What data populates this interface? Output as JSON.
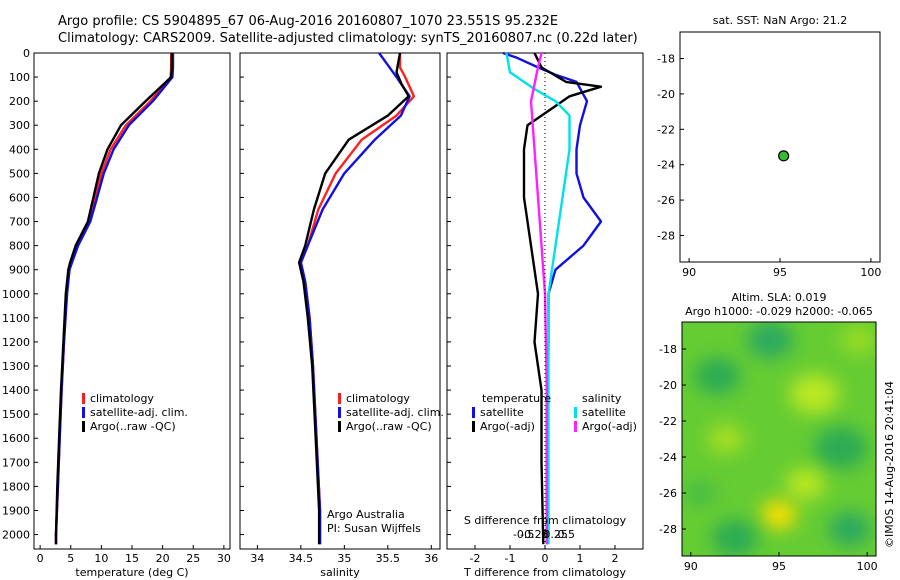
{
  "header": {
    "line1": "Argo profile: CS 5904895_67 06-Aug-2016 20160807_1070 23.551S 95.232E",
    "line2": "Climatology: CARS2009. Satellite-adjusted climatology: synTS_20160807.nc (0.22d later)"
  },
  "colors": {
    "climatology": "#ff2020",
    "satellite": "#1010e0",
    "argo": "#000000",
    "sal_satellite": "#00e0e8",
    "sal_argo": "#ff20ff",
    "marker": "#33bb33"
  },
  "depth_axis": {
    "ticks": [
      0,
      100,
      200,
      300,
      400,
      500,
      600,
      700,
      800,
      900,
      1000,
      1100,
      1200,
      1300,
      1400,
      1500,
      1600,
      1700,
      1800,
      1900,
      2000
    ],
    "ylim": [
      0,
      2060
    ]
  },
  "side_text": "©IMOS 14-Aug-2016 20:41:04",
  "chart_data": [
    {
      "type": "line",
      "id": "temperature",
      "xlabel": "temperature (deg C)",
      "xlim": [
        -1,
        31
      ],
      "xticks": [
        0,
        5,
        10,
        15,
        20,
        25,
        30
      ],
      "xticklabels": [
        "0",
        "5",
        "10",
        "15",
        "20",
        "25",
        "30"
      ],
      "legend": [
        "climatology",
        "satellite-adj. clim.",
        "Argo(..raw -QC)"
      ],
      "series": [
        {
          "name": "climatology",
          "color": "#ff2020",
          "points": [
            [
              21.4,
              0
            ],
            [
              21.4,
              60
            ],
            [
              21.3,
              100
            ],
            [
              18,
              200
            ],
            [
              14,
              300
            ],
            [
              11.5,
              400
            ],
            [
              10,
              500
            ],
            [
              9,
              600
            ],
            [
              8,
              700
            ],
            [
              6,
              800
            ],
            [
              5.1,
              870
            ],
            [
              4.7,
              900
            ],
            [
              4.3,
              1000
            ],
            [
              3.9,
              1200
            ],
            [
              3.5,
              1400
            ],
            [
              3.2,
              1600
            ],
            [
              2.9,
              1800
            ],
            [
              2.6,
              2000
            ],
            [
              2.6,
              2040
            ]
          ]
        },
        {
          "name": "satellite-adj. clim.",
          "color": "#1010e0",
          "points": [
            [
              21.7,
              0
            ],
            [
              21.7,
              60
            ],
            [
              21.6,
              100
            ],
            [
              18.4,
              200
            ],
            [
              14.5,
              300
            ],
            [
              12,
              400
            ],
            [
              10.4,
              500
            ],
            [
              9.3,
              600
            ],
            [
              8.2,
              700
            ],
            [
              6.2,
              800
            ],
            [
              5.2,
              870
            ],
            [
              4.8,
              900
            ],
            [
              4.4,
              1000
            ],
            [
              3.9,
              1200
            ],
            [
              3.5,
              1400
            ],
            [
              3.2,
              1600
            ],
            [
              2.9,
              1800
            ],
            [
              2.6,
              2000
            ],
            [
              2.6,
              2040
            ]
          ]
        },
        {
          "name": "Argo(..raw -QC)",
          "color": "#000000",
          "points": [
            [
              21.5,
              0
            ],
            [
              21.5,
              60
            ],
            [
              21.4,
              100
            ],
            [
              17.2,
              200
            ],
            [
              13.2,
              300
            ],
            [
              11,
              400
            ],
            [
              9.6,
              500
            ],
            [
              8.7,
              600
            ],
            [
              7.8,
              700
            ],
            [
              5.8,
              800
            ],
            [
              4.9,
              870
            ],
            [
              4.6,
              900
            ],
            [
              4.2,
              1000
            ],
            [
              3.8,
              1200
            ],
            [
              3.4,
              1400
            ],
            [
              3.1,
              1600
            ],
            [
              2.8,
              1800
            ],
            [
              2.6,
              2000
            ],
            [
              2.6,
              2040
            ]
          ]
        }
      ]
    },
    {
      "type": "line",
      "id": "salinity",
      "xlabel": "salinity",
      "xlim": [
        33.8,
        36.1
      ],
      "xticks": [
        34,
        34.5,
        35,
        35.5,
        36
      ],
      "xticklabels": [
        "34",
        "34.5",
        "35",
        "35.5",
        "36"
      ],
      "legend": [
        "climatology",
        "satellite-adj. clim.",
        "Argo(..raw -QC)"
      ],
      "credit": [
        "Argo Australia",
        "PI: Susan Wijffels"
      ],
      "series": [
        {
          "name": "climatology",
          "color": "#ff2020",
          "points": [
            [
              35.64,
              0
            ],
            [
              35.64,
              60
            ],
            [
              35.7,
              100
            ],
            [
              35.8,
              180
            ],
            [
              35.6,
              260
            ],
            [
              35.2,
              360
            ],
            [
              34.9,
              500
            ],
            [
              34.7,
              650
            ],
            [
              34.58,
              800
            ],
            [
              34.5,
              870
            ],
            [
              34.55,
              950
            ],
            [
              34.6,
              1100
            ],
            [
              34.64,
              1300
            ],
            [
              34.68,
              1600
            ],
            [
              34.72,
              1900
            ],
            [
              34.72,
              2040
            ]
          ]
        },
        {
          "name": "satellite-adj. clim.",
          "color": "#1010e0",
          "points": [
            [
              35.4,
              0
            ],
            [
              35.6,
              100
            ],
            [
              35.75,
              180
            ],
            [
              35.65,
              260
            ],
            [
              35.35,
              360
            ],
            [
              35.0,
              500
            ],
            [
              34.75,
              650
            ],
            [
              34.58,
              800
            ],
            [
              34.5,
              870
            ],
            [
              34.55,
              950
            ],
            [
              34.6,
              1100
            ],
            [
              34.64,
              1300
            ],
            [
              34.68,
              1600
            ],
            [
              34.72,
              1900
            ],
            [
              34.72,
              2040
            ]
          ]
        },
        {
          "name": "Argo(..raw -QC)",
          "color": "#000000",
          "points": [
            [
              35.64,
              0
            ],
            [
              35.6,
              80
            ],
            [
              35.66,
              130
            ],
            [
              35.74,
              180
            ],
            [
              35.5,
              260
            ],
            [
              35.05,
              360
            ],
            [
              34.78,
              500
            ],
            [
              34.65,
              650
            ],
            [
              34.55,
              800
            ],
            [
              34.48,
              870
            ],
            [
              34.53,
              950
            ],
            [
              34.58,
              1100
            ],
            [
              34.63,
              1300
            ],
            [
              34.67,
              1600
            ],
            [
              34.71,
              1900
            ],
            [
              34.71,
              2040
            ]
          ]
        }
      ]
    },
    {
      "type": "line",
      "id": "differences",
      "xlabel": "T difference from climatology",
      "xlim": [
        -2.8,
        2.8
      ],
      "xticks": [
        -2,
        -1,
        0,
        1,
        2
      ],
      "xticklabels": [
        "-2",
        "-1",
        "0",
        "1",
        "2"
      ],
      "top_axis_title": "S difference from climatology",
      "top_ticks": [
        -0.5,
        -0.25,
        0,
        0.25,
        0.5
      ],
      "top_ticklabels": [
        "-0.5",
        "-0.25",
        "0",
        "0.25",
        "0.5"
      ],
      "legend_left_title": "temperature",
      "legend_right_title": "salinity",
      "legend_left": [
        "satellite",
        "Argo(-adj)"
      ],
      "legend_right": [
        "satellite",
        "Argo(-adj)"
      ],
      "series": [
        {
          "name": "temperature satellite",
          "color": "#1010e0",
          "points": [
            [
              -1.2,
              0
            ],
            [
              -0.8,
              20
            ],
            [
              -0.2,
              60
            ],
            [
              0.3,
              90
            ],
            [
              0.9,
              120
            ],
            [
              1.2,
              200
            ],
            [
              1.0,
              300
            ],
            [
              0.9,
              400
            ],
            [
              0.9,
              500
            ],
            [
              1.1,
              600
            ],
            [
              1.6,
              700
            ],
            [
              1.1,
              800
            ],
            [
              0.3,
              900
            ],
            [
              0.1,
              1000
            ],
            [
              0.1,
              1200
            ],
            [
              0.05,
              1500
            ],
            [
              0.05,
              2040
            ]
          ]
        },
        {
          "name": "temperature Argo(-adj)",
          "color": "#000000",
          "points": [
            [
              -0.3,
              0
            ],
            [
              -0.1,
              60
            ],
            [
              0.6,
              120
            ],
            [
              1.6,
              140
            ],
            [
              0.7,
              180
            ],
            [
              0.3,
              220
            ],
            [
              -0.5,
              300
            ],
            [
              -0.6,
              400
            ],
            [
              -0.6,
              500
            ],
            [
              -0.6,
              600
            ],
            [
              -0.5,
              700
            ],
            [
              -0.4,
              800
            ],
            [
              -0.3,
              900
            ],
            [
              -0.2,
              1000
            ],
            [
              -0.3,
              1200
            ],
            [
              -0.1,
              1400
            ],
            [
              -0.1,
              1700
            ],
            [
              -0.05,
              2040
            ]
          ]
        },
        {
          "name": "salinity satellite",
          "color": "#00e0e8",
          "points": [
            [
              -1.1,
              0
            ],
            [
              -1.0,
              80
            ],
            [
              -0.3,
              150
            ],
            [
              0.3,
              200
            ],
            [
              0.7,
              260
            ],
            [
              0.7,
              400
            ],
            [
              0.5,
              600
            ],
            [
              0.3,
              800
            ],
            [
              0.1,
              1000
            ],
            [
              0.1,
              1400
            ],
            [
              0.1,
              2040
            ]
          ]
        },
        {
          "name": "salinity Argo(-adj)",
          "color": "#ff20ff",
          "points": [
            [
              -0.1,
              0
            ],
            [
              -0.2,
              60
            ],
            [
              -0.4,
              200
            ],
            [
              -0.3,
              400
            ],
            [
              -0.2,
              600
            ],
            [
              -0.1,
              800
            ],
            [
              0,
              1000
            ],
            [
              0.05,
              1400
            ],
            [
              0.05,
              2040
            ]
          ]
        }
      ]
    },
    {
      "type": "scatter",
      "id": "location",
      "title": "sat. SST: NaN Argo: 21.2",
      "xlim": [
        89.5,
        100.5
      ],
      "ylim": [
        -29.5,
        -16.5
      ],
      "xticks": [
        90,
        95,
        100
      ],
      "yticks": [
        -18,
        -20,
        -22,
        -24,
        -26,
        -28
      ],
      "points": [
        [
          95.2,
          -23.5
        ]
      ]
    },
    {
      "type": "heatmap",
      "id": "sla",
      "title": "Altim. SLA: 0.019",
      "subtitle": "Argo h1000: -0.029 h2000: -0.065",
      "xlim": [
        89.5,
        100.5
      ],
      "ylim": [
        -29.5,
        -16.5
      ],
      "xticks": [
        90,
        95,
        100
      ],
      "yticks": [
        -18,
        -20,
        -22,
        -24,
        -26,
        -28
      ],
      "blobs": [
        {
          "x": 91.5,
          "y": -19.5,
          "r": 1.3,
          "color": "#2aaa55"
        },
        {
          "x": 94.5,
          "y": -17.5,
          "r": 1.3,
          "color": "#2aa860"
        },
        {
          "x": 99.5,
          "y": -17.5,
          "r": 1.0,
          "color": "#99dd22"
        },
        {
          "x": 97.0,
          "y": -20.5,
          "r": 1.4,
          "color": "#bbe822"
        },
        {
          "x": 92.0,
          "y": -23.0,
          "r": 1.0,
          "color": "#aae022"
        },
        {
          "x": 98.5,
          "y": -23.5,
          "r": 1.5,
          "color": "#2aaa55"
        },
        {
          "x": 96.5,
          "y": -25.5,
          "r": 1.1,
          "color": "#bbe822"
        },
        {
          "x": 95.0,
          "y": -27.2,
          "r": 1.0,
          "color": "#ffe000"
        },
        {
          "x": 92.5,
          "y": -28.5,
          "r": 1.3,
          "color": "#2aaa55"
        },
        {
          "x": 99.0,
          "y": -28.0,
          "r": 1.2,
          "color": "#2aa860"
        },
        {
          "x": 90.5,
          "y": -26.0,
          "r": 0.9,
          "color": "#44bb44"
        }
      ]
    }
  ]
}
